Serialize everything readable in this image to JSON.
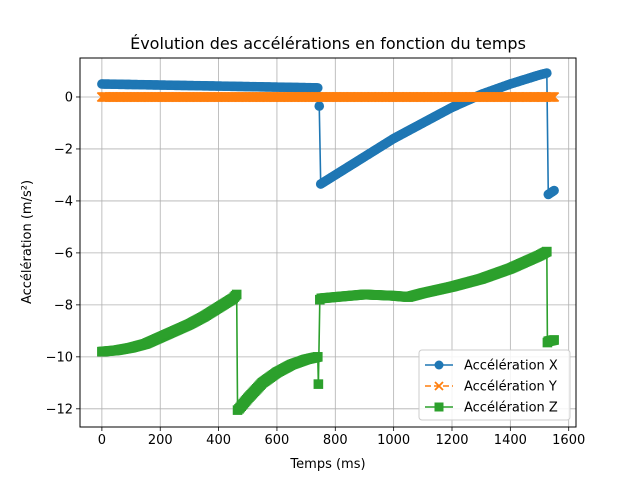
{
  "chart_data": {
    "type": "line",
    "title": "Évolution des accélérations en fonction du temps",
    "xlabel": "Temps (ms)",
    "ylabel": "Accélération (m/s²)",
    "xlim": [
      -75,
      1625
    ],
    "ylim": [
      -12.7,
      1.5
    ],
    "xticks": [
      0,
      200,
      400,
      600,
      800,
      1000,
      1200,
      1400,
      1600
    ],
    "xtick_labels": [
      "0",
      "200",
      "400",
      "600",
      "800",
      "1000",
      "1200",
      "1400",
      "1600"
    ],
    "yticks": [
      0,
      -2,
      -4,
      -6,
      -8,
      -10,
      -12
    ],
    "ytick_labels": [
      "0",
      "−2",
      "−4",
      "−6",
      "−8",
      "−10",
      "−12"
    ],
    "grid": true,
    "legend_position": "lower-right",
    "series": [
      {
        "name": "Accélération X",
        "color": "#1f77b4",
        "marker": "circle",
        "linestyle": "solid",
        "x": [
          0,
          100,
          200,
          300,
          400,
          500,
          600,
          700,
          740,
          745,
          750,
          800,
          900,
          1000,
          1100,
          1200,
          1300,
          1400,
          1500,
          1525,
          1530,
          1550
        ],
        "y": [
          0.5,
          0.48,
          0.46,
          0.44,
          0.42,
          0.4,
          0.38,
          0.36,
          0.35,
          -0.35,
          -3.35,
          -3.0,
          -2.3,
          -1.6,
          -1.0,
          -0.4,
          0.1,
          0.5,
          0.85,
          0.92,
          -3.75,
          -3.6
        ]
      },
      {
        "name": "Accélération Y",
        "color": "#ff7f0e",
        "marker": "x",
        "linestyle": "dashed",
        "x": [
          0,
          200,
          400,
          600,
          800,
          1000,
          1200,
          1400,
          1550
        ],
        "y": [
          0,
          0,
          0,
          0,
          0,
          0,
          0,
          0,
          0
        ]
      },
      {
        "name": "Accélération Z",
        "color": "#2ca02c",
        "marker": "square",
        "linestyle": "solid",
        "x": [
          0,
          50,
          100,
          150,
          200,
          250,
          300,
          350,
          400,
          450,
          462,
          465,
          470,
          500,
          550,
          600,
          650,
          700,
          740,
          742,
          747,
          752,
          800,
          900,
          1000,
          1050,
          1100,
          1200,
          1300,
          1400,
          1500,
          1525,
          1527,
          1530,
          1550
        ],
        "y": [
          -9.8,
          -9.75,
          -9.65,
          -9.5,
          -9.25,
          -9.0,
          -8.75,
          -8.45,
          -8.1,
          -7.75,
          -7.6,
          -12.05,
          -12.0,
          -11.6,
          -11.0,
          -10.6,
          -10.3,
          -10.1,
          -10.0,
          -11.05,
          -7.8,
          -7.75,
          -7.7,
          -7.6,
          -7.65,
          -7.7,
          -7.55,
          -7.3,
          -7.0,
          -6.6,
          -6.1,
          -5.95,
          -9.45,
          -9.4,
          -9.35
        ]
      }
    ]
  }
}
